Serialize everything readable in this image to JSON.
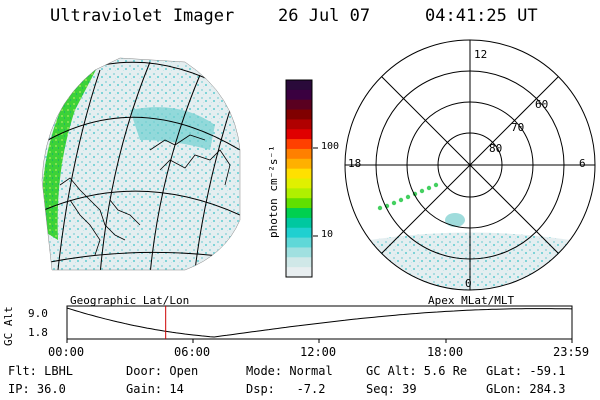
{
  "header": {
    "title": "Ultraviolet Imager",
    "date": "26 Jul 07",
    "time": "04:41:25 UT"
  },
  "colorbar": {
    "unit_label": "photon cm⁻²s⁻¹",
    "tick_labels": [
      "100",
      "10"
    ],
    "colors": [
      "#2a0a3a",
      "#3a0040",
      "#5a0020",
      "#800000",
      "#b00000",
      "#e00000",
      "#ff4000",
      "#ff8000",
      "#ffb000",
      "#ffe000",
      "#e0f000",
      "#b0f000",
      "#60e000",
      "#00d050",
      "#00c8a0",
      "#20d0d0",
      "#60d8d8",
      "#a0e0e0",
      "#d0e8e8",
      "#e8eef0"
    ]
  },
  "polar_plot": {
    "mlt_labels": {
      "top": "12",
      "left": "18",
      "right": "6",
      "bottom": "0"
    },
    "lat_labels": [
      "60",
      "70",
      "80"
    ]
  },
  "altitude_panel": {
    "axis_label": "GC Alt",
    "y_ticks": [
      "9.0",
      "1.8"
    ],
    "left_title": "Geographic Lat/Lon",
    "right_title": "Apex MLat/MLT",
    "x_ticks": [
      "00:00",
      "06:00",
      "12:00",
      "18:00",
      "23:59"
    ],
    "current_time_hours": 4.69,
    "marker_color": "#cc0000"
  },
  "status": {
    "row1": [
      {
        "label": "Flt: LBHL"
      },
      {
        "label": "Door: Open"
      },
      {
        "label": "Mode: Normal"
      },
      {
        "label": "GC Alt: 5.6 Re"
      },
      {
        "label": "GLat: -59.1"
      }
    ],
    "row2": [
      {
        "label": "IP: 36.0"
      },
      {
        "label": "Gain: 14"
      },
      {
        "label": "Dsp:   -7.2"
      },
      {
        "label": "Seq: 39"
      },
      {
        "label": "GLon: 284.3"
      }
    ]
  }
}
